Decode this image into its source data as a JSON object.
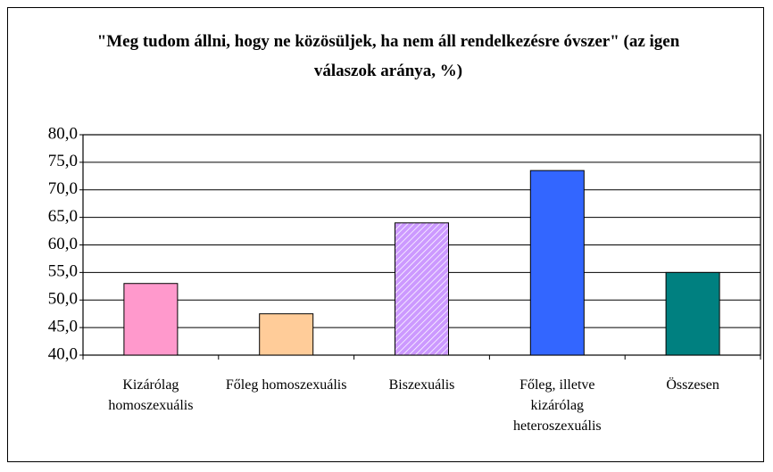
{
  "chart_data": {
    "type": "bar",
    "title": "\"Meg tudom állni, hogy ne közösüljek, ha nem áll rendelkezésre óvszer\" (az igen válaszok aránya, %)",
    "categories": [
      "Kizárólag homoszexuális",
      "Főleg homoszexuális",
      "Biszexuális",
      "Főleg, illetve kizárólag heteroszexuális",
      "Összesen"
    ],
    "values": [
      53,
      47.5,
      64,
      73.5,
      55
    ],
    "colors": [
      "#ff99cc",
      "#ffcc99",
      "#cc99ff",
      "#3366ff",
      "#008080"
    ],
    "ylim": [
      40,
      80
    ],
    "yticks": [
      {
        "value": 40,
        "label": "40,0"
      },
      {
        "value": 45,
        "label": "45,0"
      },
      {
        "value": 50,
        "label": "50,0"
      },
      {
        "value": 55,
        "label": "55,0"
      },
      {
        "value": 60,
        "label": "60,0"
      },
      {
        "value": 65,
        "label": "65,0"
      },
      {
        "value": 70,
        "label": "70,0"
      },
      {
        "value": 75,
        "label": "75,0"
      },
      {
        "value": 80,
        "label": "80,0"
      }
    ],
    "grid": true
  }
}
